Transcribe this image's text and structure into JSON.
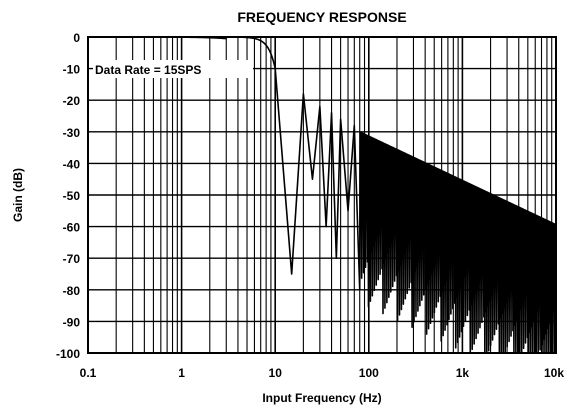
{
  "chart_data": {
    "type": "line",
    "title": "FREQUENCY RESPONSE",
    "xlabel": "Input Frequency (Hz)",
    "ylabel": "Gain (dB)",
    "x_scale": "log",
    "xlim": [
      0.1,
      10000
    ],
    "ylim": [
      -100,
      0
    ],
    "x_ticks": [
      0.1,
      1,
      10,
      100,
      1000,
      10000
    ],
    "x_tick_labels": [
      "0.1",
      "1",
      "10",
      "100",
      "1k",
      "10k"
    ],
    "y_ticks": [
      0,
      -10,
      -20,
      -30,
      -40,
      -50,
      -60,
      -70,
      -80,
      -90,
      -100
    ],
    "y_tick_labels": [
      "0",
      "-10",
      "-20",
      "-30",
      "-40",
      "-50",
      "-60",
      "-70",
      "-80",
      "-90",
      "-100"
    ],
    "grid": true,
    "annotation": "Data Rate = 15SPS",
    "series": [
      {
        "style": "sinc-like lowpass response",
        "color": "#000000",
        "x": [
          0.1,
          1,
          3,
          5,
          7,
          9,
          10,
          12,
          14,
          15,
          17,
          20,
          25,
          30,
          35,
          40,
          45,
          50,
          60,
          70,
          80,
          100,
          200,
          500,
          1000,
          2000,
          5000,
          10000
        ],
        "y": [
          0,
          0,
          -0.5,
          -1.5,
          -3,
          -6,
          -9,
          -15,
          -25,
          -75,
          -20,
          -18,
          -45,
          -22,
          -60,
          -24,
          -70,
          -26,
          -55,
          -28,
          -80,
          -30,
          -40,
          -50,
          -55,
          -60,
          -67,
          -72
        ]
      }
    ]
  }
}
